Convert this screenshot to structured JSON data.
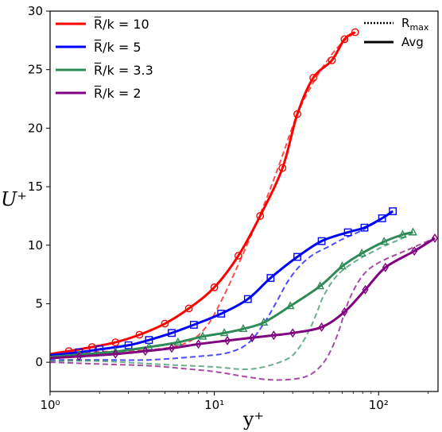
{
  "chart_data": {
    "type": "line",
    "xscale": "log",
    "xlim": [
      1,
      230
    ],
    "ylim": [
      -2.5,
      30
    ],
    "xlabel": "y⁺",
    "ylabel": "U⁺",
    "x_tick_labels": [
      "10⁰",
      "10¹",
      "10²"
    ],
    "x_ticks": [
      1,
      10,
      100
    ],
    "y_ticks": [
      0,
      5,
      10,
      15,
      20,
      25,
      30
    ],
    "y_tick_labels": [
      "0",
      "5",
      "10",
      "15",
      "20",
      "25",
      "30"
    ],
    "legend_placement": "top-left",
    "style_legend_placement": "top-right",
    "style_legend": [
      {
        "label": "R",
        "subscript": "max",
        "linestyle": "dotted"
      },
      {
        "label": "Avg",
        "linestyle": "solid"
      }
    ],
    "series": [
      {
        "name": "R̅/k = 10",
        "color": "#ff0000",
        "marker": "circle",
        "solid": {
          "x": [
            1,
            1.3,
            1.8,
            2.5,
            3.5,
            5,
            7,
            10,
            14,
            19,
            26,
            32,
            40,
            52,
            62,
            72
          ],
          "y": [
            0.7,
            0.95,
            1.3,
            1.7,
            2.35,
            3.3,
            4.6,
            6.4,
            9.1,
            12.5,
            16.6,
            21.2,
            24.3,
            25.8,
            27.6,
            28.2
          ]
        },
        "dashed": {
          "x": [
            1,
            1.5,
            2,
            3,
            4,
            5,
            6,
            7,
            8,
            9,
            10,
            12,
            15,
            20,
            25,
            32,
            40,
            50,
            60,
            72
          ],
          "y": [
            0.7,
            0.8,
            0.9,
            0.95,
            1.05,
            1.2,
            1.4,
            1.75,
            2.3,
            3.1,
            4.1,
            6.3,
            9.3,
            13.4,
            17.0,
            21.2,
            23.9,
            26.0,
            27.3,
            28.2
          ]
        }
      },
      {
        "name": "R̅/k = 5",
        "color": "#0000ff",
        "marker": "square",
        "solid": {
          "x": [
            1,
            1.5,
            2,
            3,
            4,
            5.5,
            7.5,
            11,
            16,
            22,
            32,
            45,
            65,
            82,
            105,
            122
          ],
          "y": [
            0.6,
            0.85,
            1.1,
            1.45,
            1.9,
            2.5,
            3.2,
            4.15,
            5.4,
            7.2,
            9.0,
            10.35,
            11.1,
            11.5,
            12.3,
            12.9
          ]
        },
        "dashed": {
          "x": [
            1,
            2,
            4,
            8,
            12,
            16,
            20,
            24,
            28,
            33,
            40,
            50,
            60,
            80,
            100,
            122
          ],
          "y": [
            0.2,
            0.2,
            0.2,
            0.5,
            0.8,
            1.6,
            3.3,
            5.2,
            6.9,
            8.2,
            9.2,
            9.9,
            10.5,
            11.3,
            12.1,
            12.9
          ]
        }
      },
      {
        "name": "R̅/k = 3.3",
        "color": "#2e8b57",
        "marker": "triangle",
        "solid": {
          "x": [
            1,
            1.5,
            2.5,
            4,
            6,
            8.5,
            11.5,
            15,
            20,
            29,
            44,
            60,
            79,
            108,
            140,
            162
          ],
          "y": [
            0.45,
            0.65,
            0.9,
            1.3,
            1.7,
            2.2,
            2.5,
            2.85,
            3.4,
            4.8,
            6.5,
            8.2,
            9.3,
            10.3,
            10.9,
            11.1
          ]
        },
        "dashed": {
          "x": [
            1,
            2,
            5,
            10,
            15,
            20,
            28,
            33,
            38,
            42,
            46,
            55,
            70,
            100,
            140,
            162
          ],
          "y": [
            0.1,
            0.1,
            -0.2,
            -0.4,
            -0.6,
            -0.4,
            0.3,
            1.3,
            2.8,
            4.2,
            5.6,
            7.3,
            8.5,
            9.7,
            10.6,
            11.1
          ]
        }
      },
      {
        "name": "R̅/k = 2",
        "color": "#800080",
        "marker": "diamond",
        "solid": {
          "x": [
            1,
            1.5,
            2.5,
            3.8,
            5.5,
            8,
            12,
            17,
            23,
            30,
            45,
            62,
            83,
            110,
            165,
            220
          ],
          "y": [
            0.35,
            0.5,
            0.7,
            0.95,
            1.2,
            1.55,
            1.85,
            2.1,
            2.3,
            2.5,
            3.0,
            4.3,
            6.2,
            8.1,
            9.5,
            10.6
          ]
        },
        "dashed": {
          "x": [
            1,
            2,
            4,
            6,
            10,
            15,
            22,
            32,
            40,
            48,
            56,
            66,
            80,
            100,
            150,
            220
          ],
          "y": [
            0,
            -0.15,
            -0.3,
            -0.5,
            -0.8,
            -1.2,
            -1.5,
            -1.4,
            -0.9,
            0.3,
            2.3,
            5.3,
            7.4,
            8.5,
            9.6,
            10.6
          ]
        }
      }
    ]
  }
}
